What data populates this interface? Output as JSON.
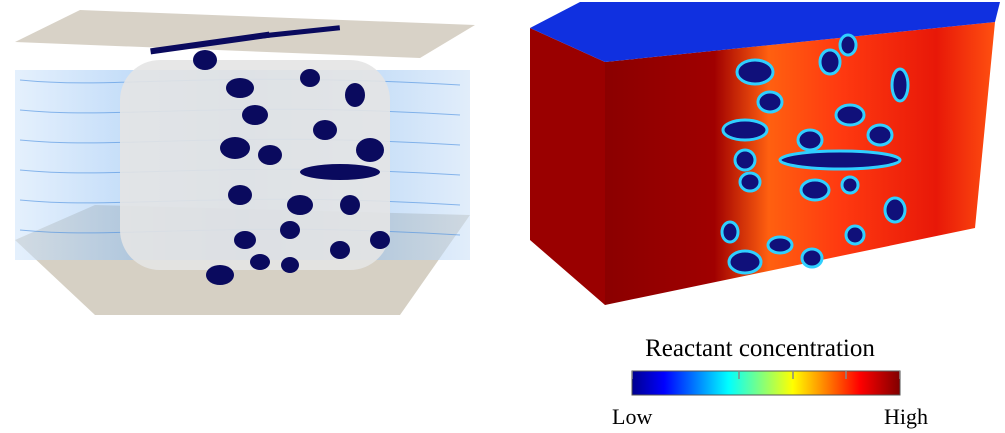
{
  "colorbar": {
    "title": "Reactant concentration",
    "min_label": "Low",
    "max_label": "High"
  }
}
